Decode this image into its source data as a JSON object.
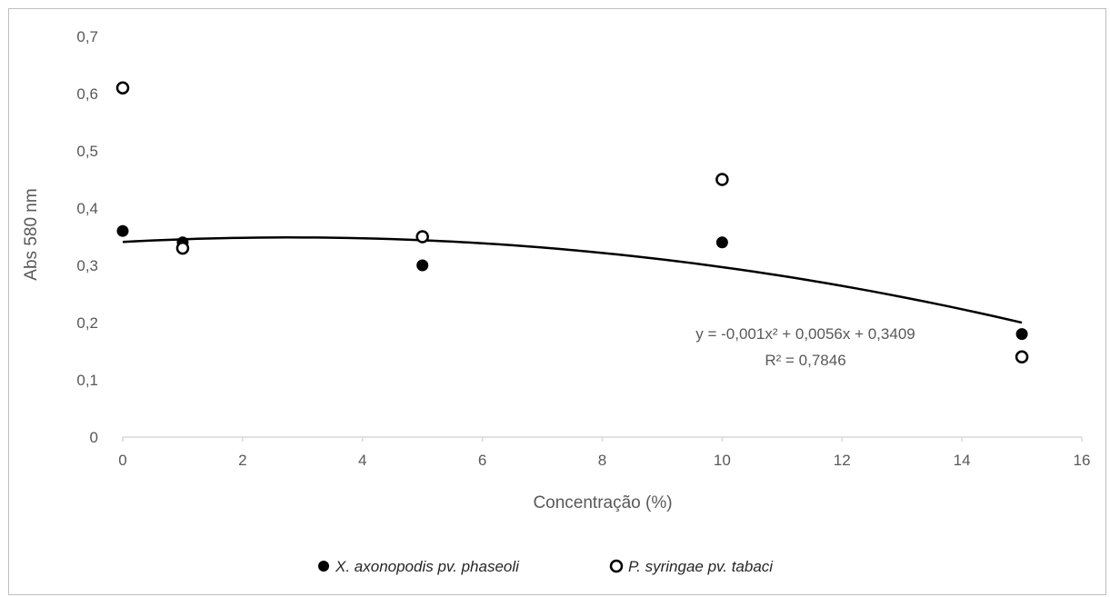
{
  "chart_data": {
    "type": "scatter",
    "title": "",
    "xlabel": "Concentração (%)",
    "ylabel": "Abs 580 nm",
    "xlim": [
      0,
      16
    ],
    "ylim": [
      0,
      0.7
    ],
    "x_ticks": [
      0,
      2,
      4,
      6,
      8,
      10,
      12,
      14,
      16
    ],
    "x_tick_labels": [
      "0",
      "2",
      "4",
      "6",
      "8",
      "10",
      "12",
      "14",
      "16"
    ],
    "y_ticks": [
      0,
      0.1,
      0.2,
      0.3,
      0.4,
      0.5,
      0.6,
      0.7
    ],
    "y_tick_labels": [
      "0",
      "0,1",
      "0,2",
      "0,3",
      "0,4",
      "0,5",
      "0,6",
      "0,7"
    ],
    "grid": false,
    "legend_position": "bottom",
    "series": [
      {
        "name": "X. axonopodis pv. phaseoli",
        "marker": "filled-circle",
        "color": "#000000",
        "x": [
          0,
          1,
          5,
          10,
          15
        ],
        "y": [
          0.36,
          0.34,
          0.3,
          0.34,
          0.18
        ]
      },
      {
        "name": "P. syringae pv. tabaci",
        "marker": "open-circle",
        "color": "#000000",
        "x": [
          0,
          1,
          5,
          10,
          15
        ],
        "y": [
          0.61,
          0.33,
          0.35,
          0.45,
          0.14
        ]
      }
    ],
    "trendline": {
      "type": "polynomial-2",
      "coefficients": {
        "a": -0.001,
        "b": 0.0056,
        "c": 0.3409
      },
      "x_range": [
        0,
        15
      ],
      "equation_label": "y = -0,001x² + 0,0056x + 0,3409",
      "r2_label": "R² = 0,7846",
      "color": "#000000"
    }
  }
}
